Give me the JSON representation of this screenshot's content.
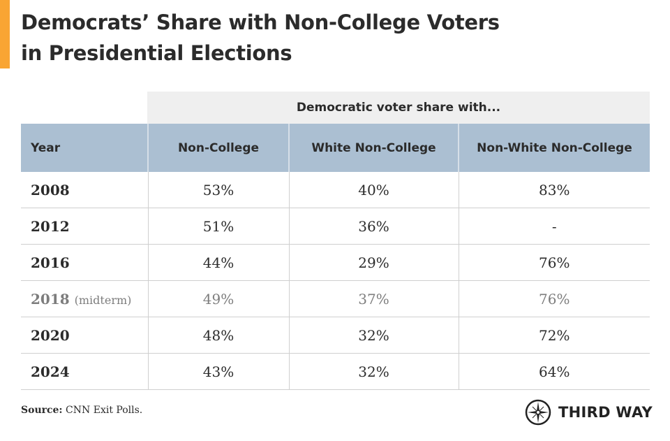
{
  "title_line1": "Democrats’ Share with Non-College Voters",
  "title_line2": "in Presidential Elections",
  "colors": {
    "accent": "#F9A533",
    "header_bg": "#abbfd2",
    "super_header_bg": "#efefef",
    "muted_row": "#7d7d7d"
  },
  "chart_data": {
    "type": "table",
    "super_header": "Democratic voter share with...",
    "columns": [
      "Year",
      "Non-College",
      "White Non-College",
      "Non-White Non-College"
    ],
    "rows": [
      {
        "year": "2008",
        "note": "",
        "values": [
          "53%",
          "40%",
          "83%"
        ]
      },
      {
        "year": "2012",
        "note": "",
        "values": [
          "51%",
          "36%",
          "-"
        ]
      },
      {
        "year": "2016",
        "note": "",
        "values": [
          "44%",
          "29%",
          "76%"
        ]
      },
      {
        "year": "2018",
        "note": "(midterm)",
        "values": [
          "49%",
          "37%",
          "76%"
        ]
      },
      {
        "year": "2020",
        "note": "",
        "values": [
          "48%",
          "32%",
          "72%"
        ]
      },
      {
        "year": "2024",
        "note": "",
        "values": [
          "43%",
          "32%",
          "64%"
        ]
      }
    ]
  },
  "source_label": "Source:",
  "source_text": " CNN Exit Polls.",
  "logo": {
    "text": "THIRD WAY",
    "icon": "compass-star-icon"
  }
}
